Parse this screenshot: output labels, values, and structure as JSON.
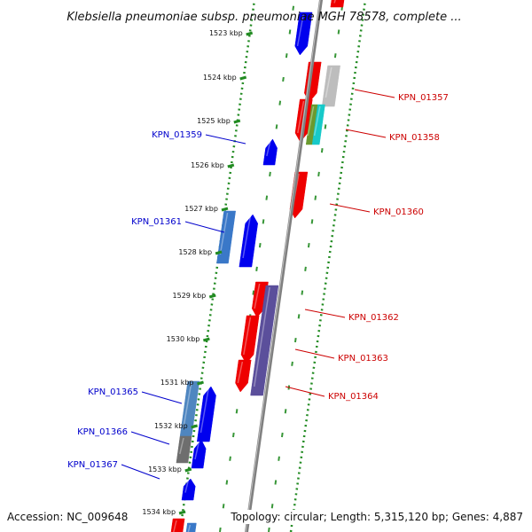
{
  "title": "Klebsiella pneumoniae subsp. pneumoniae MGH 78578, complete ...",
  "footer": {
    "accession": "Accession: NC_009648",
    "summary": "Topology: circular; Length: 5,315,120 bp; Genes: 4,887"
  },
  "colors": {
    "backbone": "#808080",
    "forward": "#0000ee",
    "reverse": "#ee0000",
    "tick": "#228b22",
    "label_forward": "#0000cc",
    "label_reverse": "#cc0000"
  },
  "ticks": [
    {
      "label": "1523 kbp"
    },
    {
      "label": "1524 kbp"
    },
    {
      "label": "1525 kbp"
    },
    {
      "label": "1526 kbp"
    },
    {
      "label": "1527 kbp"
    },
    {
      "label": "1528 kbp"
    },
    {
      "label": "1529 kbp"
    },
    {
      "label": "1530 kbp"
    },
    {
      "label": "1531 kbp"
    },
    {
      "label": "1532 kbp"
    },
    {
      "label": "1533 kbp"
    },
    {
      "label": "1534 kbp"
    }
  ],
  "labels": [
    {
      "text": "KPN_01357",
      "strand": "reverse"
    },
    {
      "text": "KPN_01358",
      "strand": "reverse"
    },
    {
      "text": "KPN_01359",
      "strand": "forward"
    },
    {
      "text": "KPN_01360",
      "strand": "reverse"
    },
    {
      "text": "KPN_01361",
      "strand": "forward"
    },
    {
      "text": "KPN_01362",
      "strand": "reverse"
    },
    {
      "text": "KPN_01363",
      "strand": "reverse"
    },
    {
      "text": "KPN_01364",
      "strand": "reverse"
    },
    {
      "text": "KPN_01365",
      "strand": "forward"
    },
    {
      "text": "KPN_01366",
      "strand": "forward"
    },
    {
      "text": "KPN_01367",
      "strand": "forward"
    }
  ]
}
